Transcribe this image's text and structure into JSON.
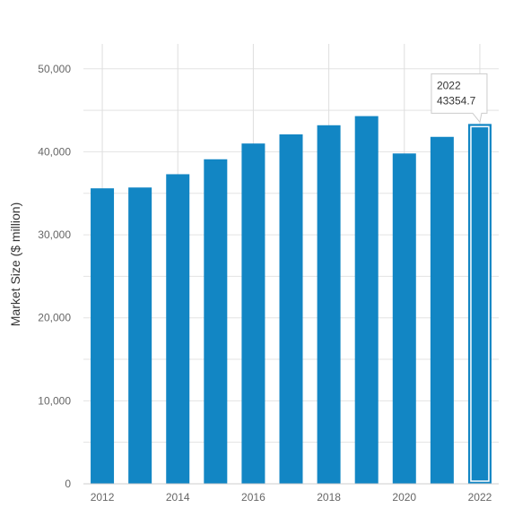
{
  "chart_data": {
    "type": "bar",
    "title": "",
    "xlabel": "",
    "ylabel": "Market Size ($ million)",
    "ylim": [
      0,
      53000
    ],
    "yticks": [
      0,
      10000,
      20000,
      30000,
      40000,
      50000
    ],
    "ytick_labels": [
      "0",
      "10,000",
      "20,000",
      "30,000",
      "40,000",
      "50,000"
    ],
    "categories": [
      "2012",
      "2013",
      "2014",
      "2015",
      "2016",
      "2017",
      "2018",
      "2019",
      "2020",
      "2021",
      "2022"
    ],
    "xtick_labels": [
      "2012",
      "2014",
      "2016",
      "2018",
      "2020",
      "2022"
    ],
    "values": [
      35600,
      35700,
      37300,
      39100,
      41000,
      42100,
      43200,
      44300,
      39800,
      41800,
      43354.7
    ],
    "grid": true,
    "bar_color": "#1286c4",
    "highlighted": {
      "category": "2022",
      "tooltip_year": "2022",
      "tooltip_value": "43354.7"
    }
  }
}
